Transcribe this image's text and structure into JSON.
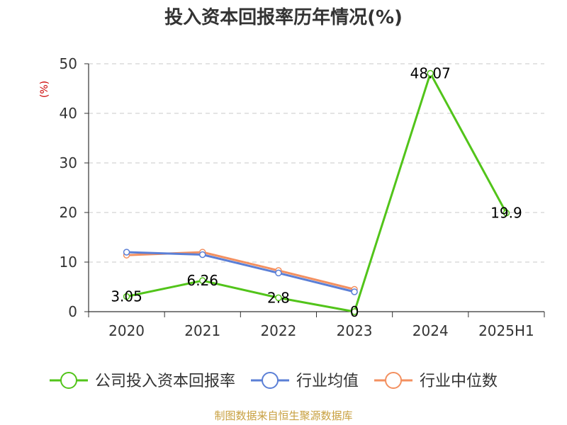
{
  "chart_data": {
    "type": "line",
    "title": "投入资本回报率历年情况(%)",
    "ylabel": "(%)",
    "ylim": [
      0,
      50
    ],
    "yticks": [
      0,
      10,
      20,
      30,
      40,
      50
    ],
    "categories": [
      "2020",
      "2021",
      "2022",
      "2023",
      "2024",
      "2025H1"
    ],
    "grid": true,
    "legend_position": "bottom",
    "series": [
      {
        "name": "公司投入资本回报率",
        "color": "#52c41a",
        "values": [
          3.05,
          6.26,
          2.8,
          0,
          48.07,
          19.9
        ],
        "labels": [
          "3.05",
          "6.26",
          "2.8",
          "0",
          "48.07",
          "19.9"
        ]
      },
      {
        "name": "行业均值",
        "color": "#5b7fd6",
        "values": [
          12.0,
          11.5,
          7.8,
          4.0,
          null,
          null
        ]
      },
      {
        "name": "行业中位数",
        "color": "#f39060",
        "values": [
          11.4,
          12.0,
          8.3,
          4.5,
          null,
          null
        ]
      }
    ],
    "source": "制图数据来自恒生聚源数据库"
  }
}
